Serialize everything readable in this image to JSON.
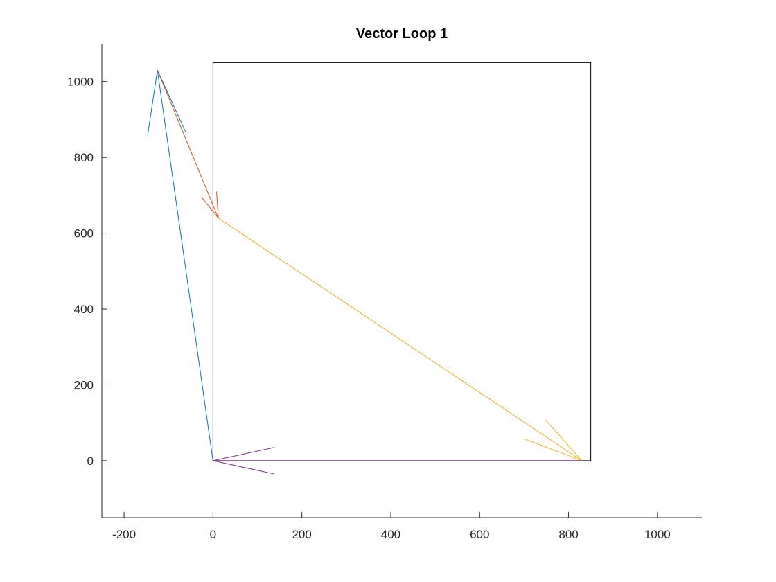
{
  "chart_data": {
    "type": "line",
    "title": "Vector Loop 1",
    "xlabel": "",
    "ylabel": "",
    "xlim": [
      -250,
      1100
    ],
    "ylim": [
      -150,
      1100
    ],
    "xticks": [
      -200,
      0,
      200,
      400,
      600,
      800,
      1000
    ],
    "yticks": [
      0,
      200,
      400,
      600,
      800,
      1000
    ],
    "xtick_labels": [
      "-200",
      "0",
      "200",
      "400",
      "600",
      "800",
      "1000"
    ],
    "ytick_labels": [
      "0",
      "200",
      "400",
      "600",
      "800",
      "1000"
    ],
    "grid": false,
    "legend": "none",
    "box": {
      "x": [
        0,
        850,
        850,
        0,
        0
      ],
      "y": [
        0,
        0,
        1050,
        1050,
        0
      ],
      "color": "#000000"
    },
    "series": [
      {
        "color": "#0072BD",
        "x": [
          0,
          -125
        ],
        "y": [
          0,
          1030
        ],
        "arrowhead": {
          "tip": [
            -125,
            1030
          ],
          "wings": [
            [
              -147,
              858
            ],
            [
              -62,
              868
            ]
          ]
        }
      },
      {
        "color": "#D95319",
        "x": [
          -125,
          12
        ],
        "y": [
          1030,
          640
        ],
        "arrowhead": {
          "tip": [
            12,
            640
          ],
          "wings": [
            [
              -25,
              694
            ],
            [
              8,
              710
            ]
          ]
        }
      },
      {
        "color": "#EDB120",
        "x": [
          12,
          830
        ],
        "y": [
          640,
          0
        ],
        "arrowhead": {
          "tip": [
            830,
            0
          ],
          "wings": [
            [
              702,
              57
            ],
            [
              748,
              108
            ]
          ]
        }
      },
      {
        "color": "#7E2F8E",
        "x": [
          830,
          0
        ],
        "y": [
          0,
          0
        ],
        "arrowhead": {
          "tip": [
            0,
            0
          ],
          "wings": [
            [
              138,
              35
            ],
            [
              138,
              -35
            ]
          ]
        }
      }
    ]
  }
}
